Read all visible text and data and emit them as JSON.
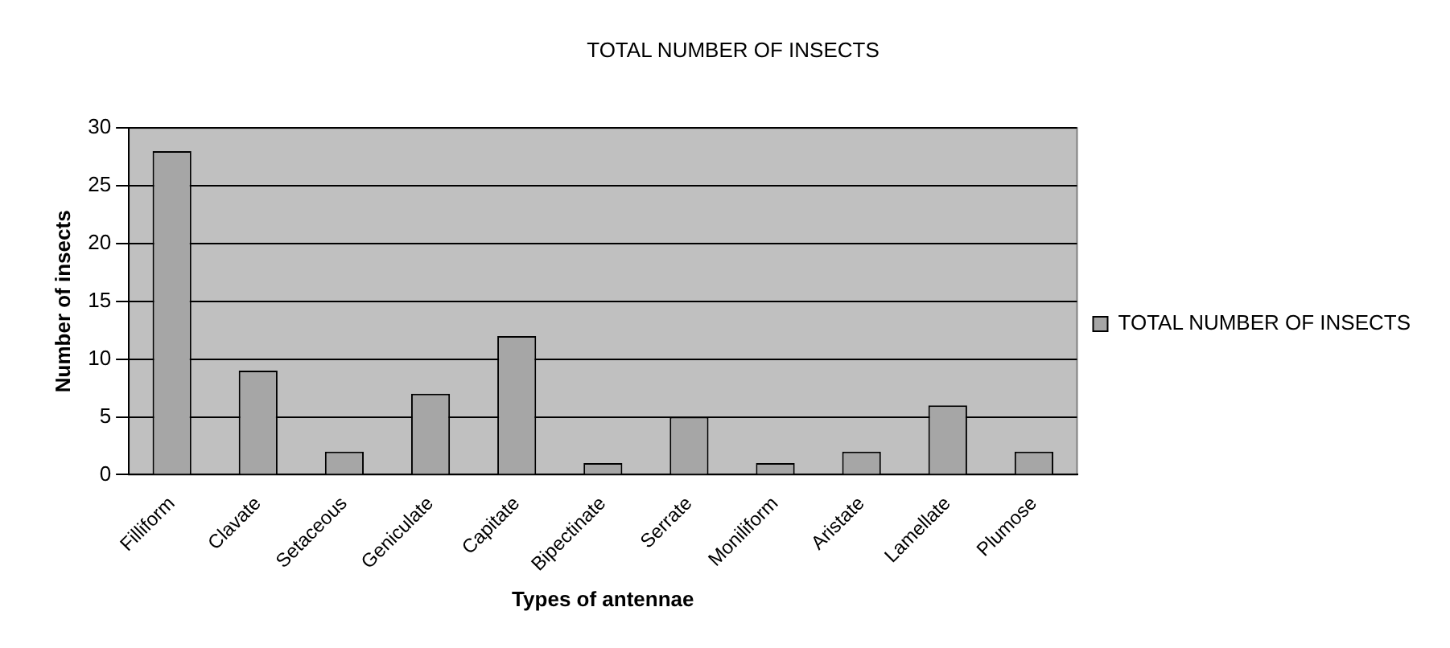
{
  "chart_data": {
    "type": "bar",
    "title": "TOTAL NUMBER OF INSECTS",
    "xlabel": "Types of antennae",
    "ylabel": "Number of insects",
    "categories": [
      "Filliform",
      "Clavate",
      "Setaceous",
      "Geniculate",
      "Capitate",
      "Bipectinate",
      "Serrate",
      "Moniliform",
      "Aristate",
      "Lamellate",
      "Plumose"
    ],
    "series": [
      {
        "name": "TOTAL NUMBER OF INSECTS",
        "color": "#a6a6a6",
        "values": [
          28,
          9,
          2,
          7,
          12,
          1,
          5,
          1,
          2,
          6,
          2
        ]
      }
    ],
    "ylim": [
      0,
      30
    ],
    "yticks": [
      0,
      5,
      10,
      15,
      20,
      25,
      30
    ],
    "grid": "y",
    "legend": "right"
  }
}
